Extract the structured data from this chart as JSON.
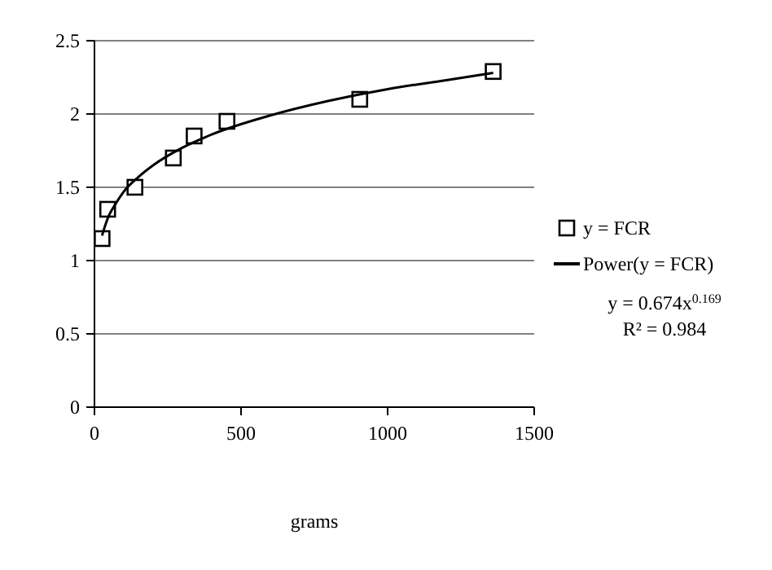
{
  "chart_data": {
    "type": "scatter",
    "xlabel": "grams",
    "xlim": [
      0,
      1500
    ],
    "xticks": [
      0,
      500,
      1000,
      1500
    ],
    "ylim": [
      0,
      2.5
    ],
    "yticks": [
      0,
      0.5,
      1,
      1.5,
      2,
      2.5
    ],
    "grid": "y",
    "legend": "right",
    "series": [
      {
        "name": "y = FCR",
        "marker": "square",
        "color": "#000000",
        "x": [
          26,
          45,
          138,
          269,
          340,
          452,
          905,
          1360
        ],
        "values": [
          1.15,
          1.35,
          1.5,
          1.7,
          1.85,
          1.95,
          2.1,
          2.29
        ]
      },
      {
        "name": "Power(y = FCR)",
        "type": "line",
        "color": "#000000",
        "x": [
          26,
          35,
          50,
          70,
          100,
          150,
          200,
          300,
          400,
          600,
          800,
          1000,
          1200,
          1360
        ],
        "values": [
          1.17,
          1.23,
          1.31,
          1.38,
          1.47,
          1.57,
          1.65,
          1.77,
          1.86,
          1.99,
          2.09,
          2.17,
          2.23,
          2.28
        ]
      }
    ],
    "annotations": [
      "y = 0.674x$^{0.169}$",
      "R² = 0.984"
    ]
  }
}
